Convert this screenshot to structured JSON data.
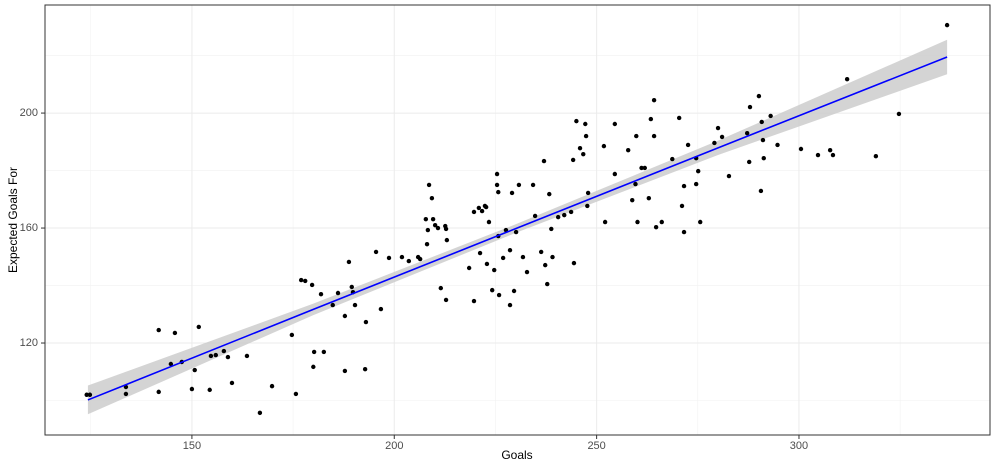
{
  "chart_data": {
    "type": "scatter",
    "xlabel": "Goals",
    "ylabel": "Expected Goals For",
    "color": "#000000",
    "grid": true,
    "xlim": [
      113.7,
      347.2
    ],
    "ylim": [
      88,
      237.6
    ],
    "xticks": [
      150,
      200,
      250,
      300
    ],
    "yticks": [
      120,
      160,
      200
    ],
    "minor_xticks": [
      125,
      175,
      225,
      275,
      325
    ],
    "minor_yticks": [
      100,
      140,
      180,
      220
    ],
    "x": [
      124,
      124.8,
      133.7,
      133.7,
      141.8,
      141.8,
      144.8,
      145.8,
      147.5,
      150,
      150.7,
      151.7,
      154.4,
      154.7,
      155.9,
      157.9,
      158.9,
      159.9,
      163.6,
      166.8,
      169.8,
      174.7,
      175.7,
      177,
      178,
      179.7,
      180,
      180.2,
      181.9,
      182.6,
      184.8,
      186.1,
      187.8,
      187.8,
      188.8,
      189.5,
      189.8,
      190.3,
      193,
      192.8,
      195.5,
      196.7,
      198.7,
      201.9,
      203.6,
      205.9,
      206.4,
      207.8,
      208.1,
      208.3,
      208.6,
      209.3,
      209.6,
      210.1,
      210.8,
      212.6,
      212.8,
      213,
      211.5,
      212.8,
      218.5,
      219.7,
      219.7,
      220.9,
      221.2,
      221.7,
      222.4,
      222.7,
      222.9,
      223.4,
      224.2,
      224.7,
      225.4,
      225.4,
      225.7,
      225.7,
      225.9,
      226.9,
      227.6,
      228.6,
      228.6,
      229.1,
      229.6,
      230.1,
      230.8,
      231.8,
      232.8,
      234.3,
      234.8,
      236.3,
      237,
      237.3,
      237.8,
      238.3,
      238.8,
      239.1,
      240.5,
      242,
      243.7,
      244.4,
      244.2,
      245,
      245.9,
      246.7,
      247.2,
      247.4,
      247.7,
      247.9,
      251.8,
      252.1,
      254.5,
      254.5,
      257.8,
      258.8,
      259.6,
      259.8,
      260.1,
      261.1,
      261.9,
      262.9,
      263.4,
      264.2,
      264.2,
      264.7,
      266.1,
      268.7,
      270.4,
      271.1,
      271.6,
      271.6,
      272.6,
      274.6,
      274.6,
      275.1,
      275.6,
      279.1,
      280,
      281,
      282.7,
      287.2,
      287.9,
      287.7,
      290.1,
      290.6,
      290.8,
      291.1,
      291.3,
      293,
      294.7,
      300.5,
      304.7,
      307.7,
      308.4,
      311.9,
      319,
      324.7,
      336.6
    ],
    "values": [
      102,
      102,
      104.7,
      102.3,
      124.5,
      103,
      112.7,
      123.5,
      113.4,
      104,
      110.6,
      125.6,
      103.7,
      115.5,
      115.8,
      117.2,
      115.1,
      106.1,
      115.5,
      95.7,
      105,
      122.8,
      102.3,
      141.9,
      141.6,
      140.2,
      111.7,
      116.9,
      137,
      116.9,
      133.2,
      137.4,
      129.4,
      110.3,
      148.2,
      139.5,
      137.7,
      133.2,
      127.3,
      110.9,
      151.7,
      131.8,
      149.6,
      149.9,
      148.5,
      149.9,
      149.2,
      163.1,
      154.4,
      159.3,
      175,
      170.4,
      163.1,
      161,
      160,
      160.7,
      159.7,
      155.8,
      139.1,
      135,
      146.1,
      134.6,
      165.6,
      167,
      151.3,
      165.9,
      167.7,
      167.3,
      147.5,
      162.1,
      138.4,
      145.4,
      178.8,
      175,
      172.5,
      157.2,
      136.7,
      149.6,
      159.3,
      152.3,
      133.2,
      172.2,
      138.1,
      158.6,
      175,
      149.9,
      144.7,
      175,
      164.2,
      151.7,
      183.3,
      147.1,
      140.5,
      171.8,
      159.7,
      149.9,
      163.8,
      164.5,
      165.6,
      147.8,
      183.7,
      197.2,
      187.8,
      185.7,
      196.2,
      192,
      167.7,
      172.2,
      188.5,
      162.1,
      196.2,
      178.8,
      187.1,
      169.7,
      175.3,
      192,
      162.1,
      180.9,
      180.9,
      170.4,
      197.9,
      204.5,
      192,
      160.3,
      162.1,
      184,
      198.3,
      167.7,
      158.6,
      174.6,
      188.9,
      175.3,
      184.3,
      179.8,
      162.1,
      189.6,
      194.8,
      191.7,
      178.1,
      193,
      202.1,
      183,
      205.9,
      172.9,
      196.9,
      190.6,
      184.3,
      199,
      188.9,
      187.5,
      185.4,
      187.1,
      185.4,
      211.8,
      185,
      199.7,
      230.6
    ],
    "fit": {
      "color": "#0000ff",
      "band_color": "#cccccc",
      "x": [
        124.3,
        180,
        230,
        280,
        336.6
      ],
      "y": [
        100.2,
        131.7,
        159.8,
        187.9,
        219.5
      ],
      "lower": [
        95.2,
        129.7,
        158.3,
        185.4,
        213.5
      ],
      "upper": [
        105.2,
        133.7,
        161.3,
        190.4,
        225.5
      ]
    }
  }
}
